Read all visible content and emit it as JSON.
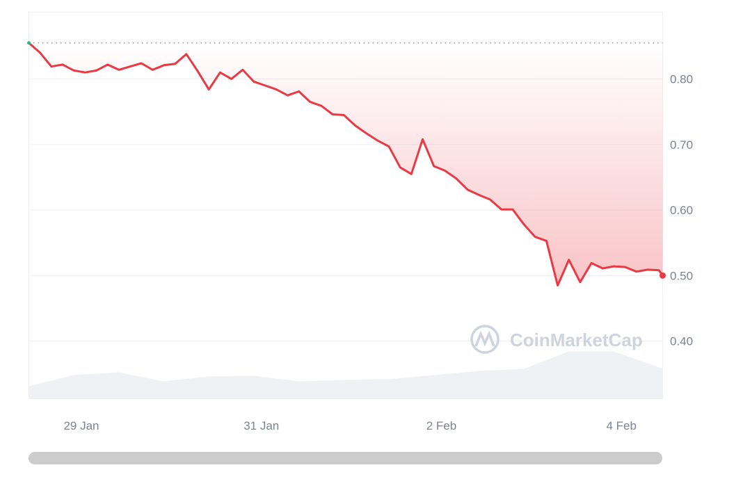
{
  "chart_data": {
    "type": "line",
    "title": "",
    "xlabel": "",
    "ylabel": "",
    "ylim": [
      0.312,
      0.902
    ],
    "xlim": [
      "2025-01-28 10:00",
      "2025-02-04 11:00"
    ],
    "grid": true,
    "y_ticks": [
      "0.80",
      "0.70",
      "0.60",
      "0.50",
      "0.40"
    ],
    "y_tick_values": [
      0.8,
      0.7,
      0.6,
      0.5,
      0.4
    ],
    "x_ticks": [
      "29 Jan",
      "31 Jan",
      "2 Feb",
      "4 Feb"
    ],
    "x_tick_values": [
      "2025-01-29 00:00",
      "2025-01-31 00:00",
      "2025-02-02 00:00",
      "2025-02-04 00:00"
    ],
    "baseline": 0.855,
    "colors": {
      "line": "#ea3943",
      "start_dot": "#16c784",
      "grid": "#eeeff2",
      "volume": "#eff1f4",
      "watermark": "#cfd3de"
    },
    "watermark": "CoinMarketCap",
    "price": {
      "x": [
        "2025-01-28 10:00",
        "2025-01-28 13:00",
        "2025-01-28 16:00",
        "2025-01-28 19:00",
        "2025-01-28 22:00",
        "2025-01-29 01:00",
        "2025-01-29 04:00",
        "2025-01-29 07:00",
        "2025-01-29 10:00",
        "2025-01-29 13:00",
        "2025-01-29 16:00",
        "2025-01-29 19:00",
        "2025-01-29 22:00",
        "2025-01-30 01:00",
        "2025-01-30 04:00",
        "2025-01-30 07:00",
        "2025-01-30 10:00",
        "2025-01-30 13:00",
        "2025-01-30 16:00",
        "2025-01-30 19:00",
        "2025-01-30 22:00",
        "2025-01-31 01:00",
        "2025-01-31 04:00",
        "2025-01-31 07:00",
        "2025-01-31 10:00",
        "2025-01-31 13:00",
        "2025-01-31 16:00",
        "2025-01-31 19:00",
        "2025-01-31 22:00",
        "2025-02-01 01:00",
        "2025-02-01 04:00",
        "2025-02-01 07:00",
        "2025-02-01 10:00",
        "2025-02-01 13:00",
        "2025-02-01 16:00",
        "2025-02-01 19:00",
        "2025-02-01 22:00",
        "2025-02-02 01:00",
        "2025-02-02 04:00",
        "2025-02-02 07:00",
        "2025-02-02 10:00",
        "2025-02-02 13:00",
        "2025-02-02 16:00",
        "2025-02-02 19:00",
        "2025-02-02 22:00",
        "2025-02-03 01:00",
        "2025-02-03 04:00",
        "2025-02-03 07:00",
        "2025-02-03 10:00",
        "2025-02-03 13:00",
        "2025-02-03 16:00",
        "2025-02-03 19:00",
        "2025-02-03 22:00",
        "2025-02-04 01:00",
        "2025-02-04 04:00",
        "2025-02-04 07:00",
        "2025-02-04 10:00",
        "2025-02-04 11:00"
      ],
      "y": [
        0.855,
        0.84,
        0.819,
        0.822,
        0.813,
        0.81,
        0.813,
        0.822,
        0.814,
        0.819,
        0.824,
        0.814,
        0.821,
        0.823,
        0.838,
        0.812,
        0.784,
        0.81,
        0.8,
        0.814,
        0.796,
        0.79,
        0.784,
        0.775,
        0.781,
        0.765,
        0.759,
        0.746,
        0.745,
        0.729,
        0.717,
        0.706,
        0.697,
        0.665,
        0.655,
        0.708,
        0.667,
        0.66,
        0.648,
        0.631,
        0.623,
        0.616,
        0.601,
        0.601,
        0.578,
        0.559,
        0.553,
        0.485,
        0.524,
        0.49,
        0.519,
        0.511,
        0.514,
        0.513,
        0.506,
        0.509,
        0.508,
        0.5
      ]
    },
    "volume": {
      "x": [
        "2025-01-28 10:00",
        "2025-01-28 22:00",
        "2025-01-29 10:00",
        "2025-01-29 22:00",
        "2025-01-30 10:00",
        "2025-01-30 22:00",
        "2025-01-31 10:00",
        "2025-01-31 22:00",
        "2025-02-01 10:00",
        "2025-02-01 22:00",
        "2025-02-02 10:00",
        "2025-02-02 22:00",
        "2025-02-03 10:00",
        "2025-02-03 22:00",
        "2025-02-04 10:00",
        "2025-02-04 11:00"
      ],
      "relative": [
        18,
        34,
        38,
        25,
        32,
        33,
        25,
        27,
        28,
        34,
        40,
        43,
        68,
        68,
        45,
        43
      ]
    }
  },
  "scrollbar": {
    "label": "chart range scrollbar"
  }
}
